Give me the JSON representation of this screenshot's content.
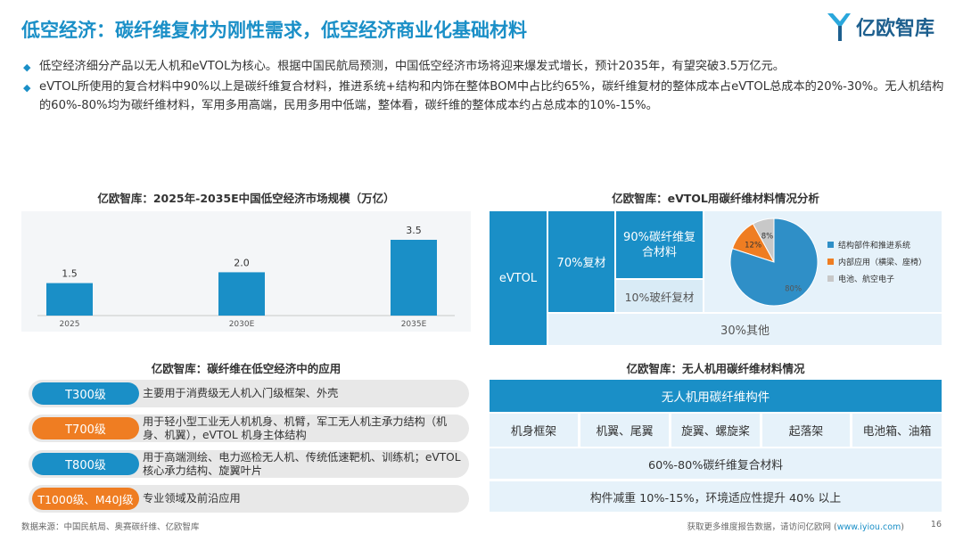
{
  "header": {
    "title": "低空经济：碳纤维复材为刚性需求，低空经济商业化基础材料",
    "logo_text": "亿欧智库"
  },
  "bullets": [
    "低空经济细分产品以无人机和eVTOL为核心。根据中国民航局预测，中国低空经济市场将迎来爆发式增长，预计2035年，有望突破3.5万亿元。",
    "eVTOL所使用的复合材料中90%以上是碳纤维复合材料，推进系统+结构和内饰在整体BOM中占比约65%，碳纤维复材的整体成本占eVTOL总成本的20%-30%。无人机结构的60%-80%均为碳纤维材料，军用多用高端，民用多用中低端，整体看，碳纤维的整体成本约占总成本的10%-15%。"
  ],
  "market_chart": {
    "title": "亿欧智库：2025年-2035E中国低空经济市场规模（万亿）"
  },
  "chart_data": {
    "type": "bar",
    "categories": [
      "2025",
      "2030E",
      "2035E"
    ],
    "values": [
      1.5,
      2.0,
      3.5
    ],
    "value_labels": [
      "1.5",
      "2.0",
      "3.5"
    ],
    "ylim": [
      0,
      3.5
    ],
    "color": "#1a8fc7"
  },
  "evtol": {
    "title": "亿欧智库：eVTOL用碳纤维材料情况分析",
    "evtol_label": "eVTOL",
    "composite_label": "70%复材",
    "carbon_label": "90%碳纤维复合材料",
    "glass_label": "10%玻纤复材",
    "other_label": "30%其他",
    "pie": {
      "slices": [
        {
          "name": "结构部件和推进系统",
          "value": 80,
          "label": "80%",
          "color": "#2f8fc7"
        },
        {
          "name": "内部应用（横梁、座椅）",
          "value": 12,
          "label": "12%",
          "color": "#ef7d22"
        },
        {
          "name": "电池、航空电子",
          "value": 8,
          "label": "8%",
          "color": "#c8c8c8"
        }
      ]
    }
  },
  "applications": {
    "title": "亿欧智库：碳纤维在低空经济中的应用",
    "rows": [
      {
        "badge": "T300级",
        "text": "主要用于消费级无人机入门级框架、外壳",
        "color": "#1a8fc7"
      },
      {
        "badge": "T700级",
        "text": "用于轻小型工业无人机机身、机臂，军工无人机主承力结构（机身、机翼），eVTOL 机身主体结构",
        "color": "#ef7d22"
      },
      {
        "badge": "T800级",
        "text": "用于高端测绘、电力巡检无人机、传统低速靶机、训练机；eVTOL 核心承力结构、旋翼叶片",
        "color": "#1a8fc7"
      },
      {
        "badge": "T1000级、M40J级",
        "text": "专业领域及前沿应用",
        "color": "#ef7d22"
      }
    ]
  },
  "uav": {
    "title": "亿欧智库：无人机用碳纤维材料情况",
    "header": "无人机用碳纤维构件",
    "parts": [
      "机身框架",
      "机翼、尾翼",
      "旋翼、螺旋桨",
      "起落架",
      "电池箱、油箱"
    ],
    "row1": "60%-80%碳纤维复合材料",
    "row2": "构件减重 10%-15%，环境适应性提升 40% 以上"
  },
  "footer": {
    "source": "数据来源：中国民航局、奥赛碳纤维、亿欧智库",
    "cta": "获取更多维度报告数据，请访问亿欧网 (",
    "link": "www.iyiou.com",
    "cta_end": ")",
    "page": "16"
  }
}
